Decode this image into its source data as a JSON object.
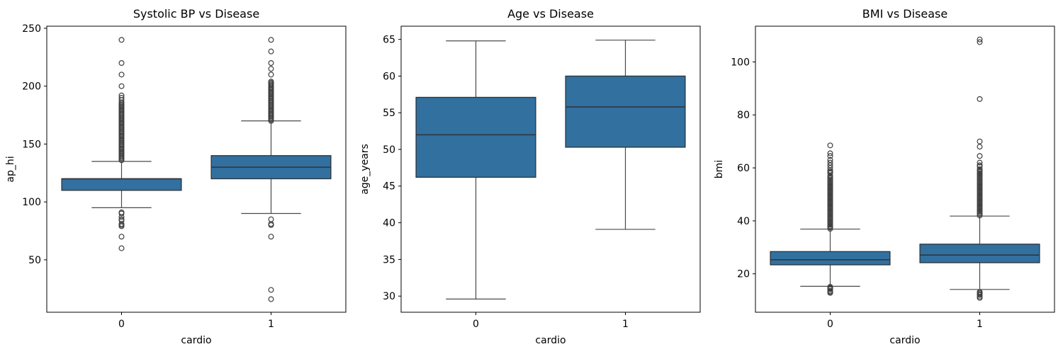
{
  "figure": {
    "background": "#ffffff"
  },
  "style": {
    "box_fill": "#32709f",
    "box_edge": "#2f3338",
    "whisker_color": "#4a4a4a",
    "flier_color": "#3f3f3f",
    "axis_color": "#000000",
    "text_color": "#000000"
  },
  "chart_data": [
    {
      "type": "box",
      "title": "Systolic BP vs Disease",
      "xlabel": "cardio",
      "ylabel": "ap_hi",
      "categories": [
        "0",
        "1"
      ],
      "ylim": [
        4.7,
        251.8
      ],
      "yticks": [
        50,
        100,
        150,
        200,
        250
      ],
      "grid": false,
      "legend": null,
      "boxes": [
        {
          "category": "0",
          "whisker_low": 95,
          "q1": 110,
          "median": 120,
          "q3": 120,
          "whisker_high": 135,
          "outliers": [
            60,
            70,
            79,
            80,
            81,
            84,
            85,
            87,
            90,
            91,
            136,
            137,
            138,
            139,
            140,
            141,
            142,
            143,
            144,
            145,
            146,
            147,
            148,
            149,
            150,
            151,
            152,
            153,
            154,
            155,
            156,
            157,
            158,
            159,
            160,
            161,
            162,
            163,
            164,
            165,
            166,
            167,
            168,
            169,
            170,
            171,
            172,
            173,
            174,
            175,
            176,
            177,
            178,
            179,
            180,
            181,
            182,
            183,
            184,
            185,
            186,
            188,
            190,
            192,
            200,
            210,
            220,
            240
          ]
        },
        {
          "category": "1",
          "whisker_low": 90,
          "q1": 120,
          "median": 130,
          "q3": 140,
          "whisker_high": 170,
          "outliers": [
            16,
            24,
            70,
            80,
            81,
            85,
            170,
            171,
            172,
            173,
            174,
            175,
            176,
            177,
            178,
            179,
            180,
            181,
            182,
            183,
            184,
            185,
            186,
            187,
            188,
            189,
            190,
            191,
            192,
            193,
            194,
            195,
            196,
            197,
            198,
            199,
            200,
            201,
            202,
            203,
            204,
            210,
            215,
            220,
            230,
            240
          ]
        }
      ]
    },
    {
      "type": "box",
      "title": "Age vs Disease",
      "xlabel": "cardio",
      "ylabel": "age_years",
      "categories": [
        "0",
        "1"
      ],
      "ylim": [
        27.8,
        66.8
      ],
      "yticks": [
        30,
        35,
        40,
        45,
        50,
        55,
        60,
        65
      ],
      "grid": false,
      "legend": null,
      "boxes": [
        {
          "category": "0",
          "whisker_low": 29.6,
          "q1": 46.2,
          "median": 52.0,
          "q3": 57.1,
          "whisker_high": 64.8,
          "outliers": []
        },
        {
          "category": "1",
          "whisker_low": 39.1,
          "q1": 50.3,
          "median": 55.8,
          "q3": 60.0,
          "whisker_high": 64.9,
          "outliers": []
        }
      ]
    },
    {
      "type": "box",
      "title": "BMI vs Disease",
      "xlabel": "cardio",
      "ylabel": "bmi",
      "categories": [
        "0",
        "1"
      ],
      "ylim": [
        5.5,
        113.5
      ],
      "yticks": [
        20,
        40,
        60,
        80,
        100
      ],
      "grid": false,
      "legend": null,
      "boxes": [
        {
          "category": "0",
          "whisker_low": 15.3,
          "q1": 23.4,
          "median": 25.3,
          "q3": 28.4,
          "whisker_high": 36.9,
          "outliers": [
            12.8,
            13.2,
            13.6,
            14.2,
            14.5,
            14.8,
            15.1,
            37,
            37.5,
            38,
            38.5,
            39,
            39.5,
            40,
            40.5,
            41,
            41.5,
            42,
            42.5,
            43,
            43.5,
            44,
            44.5,
            45,
            45.5,
            46,
            46.5,
            47,
            47.5,
            48,
            48.5,
            49,
            49.5,
            50,
            50.5,
            51,
            51.5,
            52,
            52.5,
            53,
            53.5,
            54,
            54.5,
            55,
            55.5,
            56,
            56.5,
            57,
            58,
            58.5,
            59,
            60,
            61,
            62,
            63,
            64.5,
            65.5,
            68.5
          ]
        },
        {
          "category": "1",
          "whisker_low": 14.1,
          "q1": 24.2,
          "median": 27.1,
          "q3": 31.2,
          "whisker_high": 41.8,
          "outliers": [
            10.9,
            11.4,
            12.0,
            12.4,
            12.8,
            13.2,
            42,
            42.5,
            43,
            43.5,
            44,
            44.5,
            45,
            45.5,
            46,
            46.5,
            47,
            47.5,
            48,
            48.5,
            49,
            49.5,
            50,
            50.5,
            51,
            51.5,
            52,
            52.5,
            53,
            53.5,
            54,
            54.5,
            55,
            55.5,
            56,
            56.5,
            57,
            57.5,
            58,
            58.5,
            59,
            59.5,
            60.5,
            61,
            62,
            64.5,
            68,
            70,
            86,
            107.5,
            108.5
          ]
        }
      ]
    }
  ]
}
